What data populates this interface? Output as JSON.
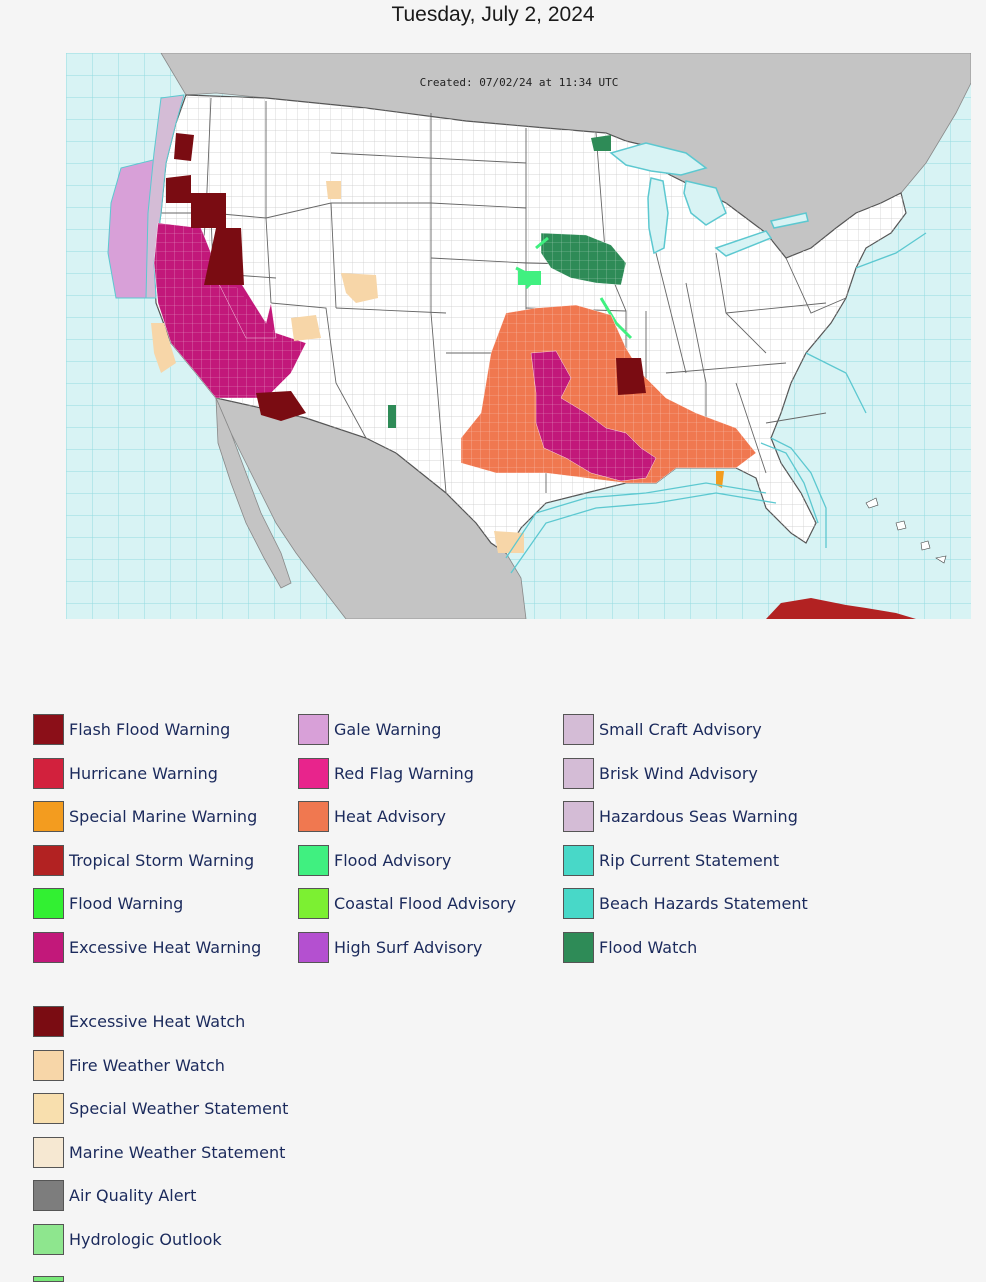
{
  "header": {
    "date": "Tuesday, July 2, 2024"
  },
  "map": {
    "created_stamp": "Created: 07/02/24 at 11:34 UTC",
    "colors": {
      "water": "#d8f3f4",
      "foreign_land": "#c4c4c4",
      "us_land": "#ffffff",
      "marine_line": "#5cc8d0"
    }
  },
  "legend": {
    "columns": [
      [
        {
          "label": "Flash Flood Warning",
          "color": "#8b0f18"
        },
        {
          "label": "Hurricane Warning",
          "color": "#d2213d"
        },
        {
          "label": "Special Marine Warning",
          "color": "#f39c1f"
        },
        {
          "label": "Tropical Storm Warning",
          "color": "#b22222"
        },
        {
          "label": "Flood Warning",
          "color": "#32f032"
        },
        {
          "label": "Excessive Heat Warning",
          "color": "#c2187a"
        }
      ],
      [
        {
          "label": "Gale Warning",
          "color": "#d8a0d8"
        },
        {
          "label": "Red Flag Warning",
          "color": "#e8248c"
        },
        {
          "label": "Heat Advisory",
          "color": "#f07850"
        },
        {
          "label": "Flood Advisory",
          "color": "#40f080"
        },
        {
          "label": "Coastal Flood Advisory",
          "color": "#7cf032"
        },
        {
          "label": "High Surf Advisory",
          "color": "#b450d0"
        }
      ],
      [
        {
          "label": "Small Craft Advisory",
          "color": "#d4bcd6"
        },
        {
          "label": "Brisk Wind Advisory",
          "color": "#d4bcd6"
        },
        {
          "label": "Hazardous Seas Warning",
          "color": "#d4bcd6"
        },
        {
          "label": "Rip Current Statement",
          "color": "#48d8c8"
        },
        {
          "label": "Beach Hazards Statement",
          "color": "#48d8c8"
        },
        {
          "label": "Flood Watch",
          "color": "#2e8b57"
        }
      ]
    ],
    "secondary": [
      {
        "label": "Excessive Heat Watch",
        "color": "#7a0c12"
      },
      {
        "label": "Fire Weather Watch",
        "color": "#f7d6a8"
      },
      {
        "label": "Special Weather Statement",
        "color": "#f8dfae"
      },
      {
        "label": "Marine Weather Statement",
        "color": "#f6e8d2"
      },
      {
        "label": "Air Quality Alert",
        "color": "#7d7d7d"
      },
      {
        "label": "Hydrologic Outlook",
        "color": "#8ee68e"
      }
    ]
  }
}
